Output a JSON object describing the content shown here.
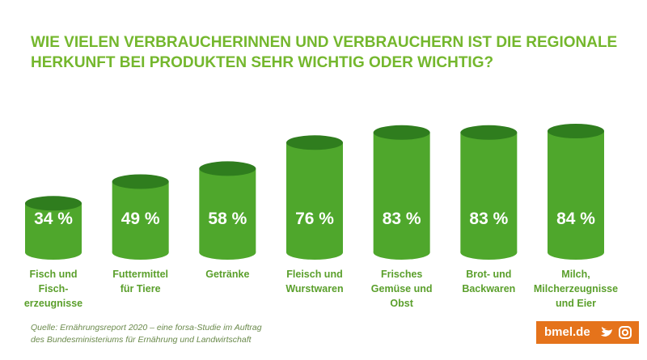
{
  "chart_data": {
    "type": "bar",
    "title": "WIE VIELEN VERBRAUCHERINNEN UND VERBRAUCHERN IST DIE REGIONALE\nHERKUNFT BEI PRODUKTEN SEHR WICHTIG ODER WICHTIG?",
    "categories": [
      "Fisch und\nFisch-\nerzeugnisse",
      "Futtermittel\nfür Tiere",
      "Getränke",
      "Fleisch und\nWurstwaren",
      "Frisches\nGemüse und\nObst",
      "Brot- und\nBackwaren",
      "Milch,\nMilcherzeugnisse\nund Eier"
    ],
    "values": [
      34,
      49,
      58,
      76,
      83,
      83,
      84
    ],
    "value_labels": [
      "34 %",
      "49 %",
      "58 %",
      "76 %",
      "83 %",
      "83 %",
      "84 %"
    ],
    "color": "#4fa72c",
    "source": "Quelle: Ernährungsreport 2020 – eine forsa-Studie im Auftrag\ndes Bundesministeriums für Ernährung und Landwirtschaft",
    "brand": "bmel.de"
  }
}
